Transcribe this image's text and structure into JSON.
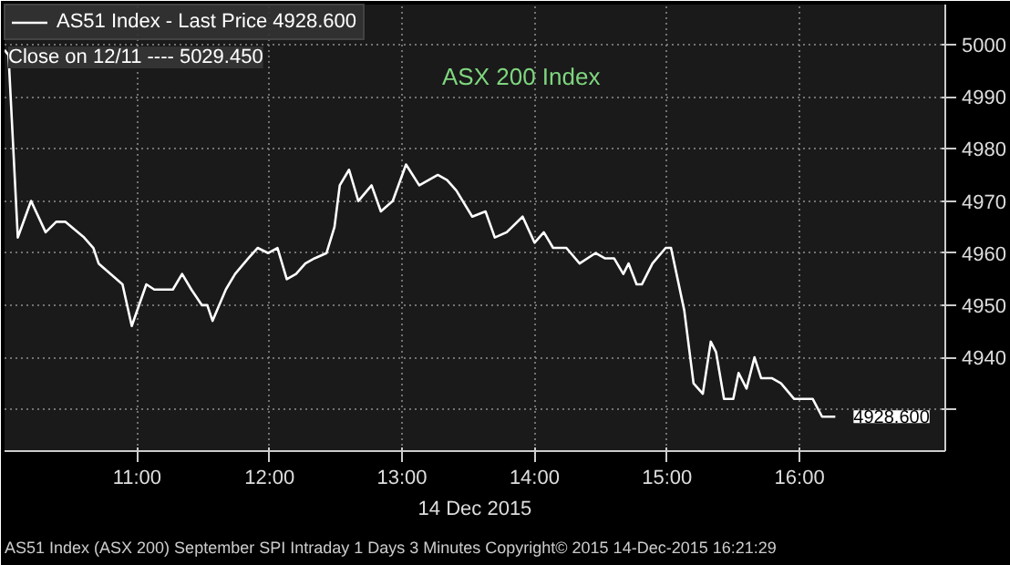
{
  "chart_data": {
    "type": "line",
    "title": "ASX 200 Index",
    "xlabel": "14 Dec 2015",
    "x": [
      10.0,
      10.03,
      10.1,
      10.2,
      10.31,
      10.39,
      10.46,
      10.6,
      10.67,
      10.71,
      10.89,
      10.96,
      11.07,
      11.13,
      11.27,
      11.34,
      11.41,
      11.49,
      11.53,
      11.57,
      11.67,
      11.74,
      11.84,
      11.91,
      11.99,
      12.06,
      12.13,
      12.2,
      12.27,
      12.34,
      12.43,
      12.49,
      12.53,
      12.6,
      12.67,
      12.77,
      12.84,
      12.93,
      13.03,
      13.13,
      13.2,
      13.27,
      13.34,
      13.41,
      13.53,
      13.63,
      13.7,
      13.79,
      13.91,
      14.0,
      14.07,
      14.14,
      14.24,
      14.34,
      14.46,
      14.53,
      14.6,
      14.67,
      14.71,
      14.77,
      14.81,
      14.89,
      14.99,
      15.03,
      15.13,
      15.2,
      15.27,
      15.33,
      15.37,
      15.43,
      15.5,
      15.54,
      15.6,
      15.66,
      15.71,
      15.79,
      15.86,
      15.96,
      16.1,
      16.17,
      16.27
    ],
    "series": [
      {
        "name": "AS51 Index - Last Price 4928.600",
        "color": "#ffffff",
        "values": [
          4999,
          4998,
          4963,
          4970,
          4964,
          4966,
          4966,
          4963,
          4961,
          4958,
          4954,
          4946,
          4954,
          4953,
          4953,
          4956,
          4953,
          4950,
          4950,
          4947,
          4953,
          4956,
          4959,
          4961,
          4960,
          4961,
          4955,
          4956,
          4958,
          4959,
          4960,
          4965,
          4973,
          4976,
          4970,
          4973,
          4968,
          4970,
          4977,
          4973,
          4974,
          4975,
          4974,
          4972,
          4967,
          4968,
          4963,
          4964,
          4967,
          4962,
          4964,
          4961,
          4961,
          4958,
          4960,
          4959,
          4959,
          4956,
          4958,
          4954,
          4954,
          4958,
          4961,
          4961,
          4949,
          4935,
          4933,
          4943,
          4941,
          4932,
          4932,
          4937,
          4934,
          4940,
          4936,
          4936,
          4935,
          4932,
          4932,
          4928.6,
          4928.6
        ]
      }
    ],
    "xlim": [
      10.0,
      17.1
    ],
    "ylim": [
      4922,
      5007.7
    ],
    "xticks": [
      {
        "value": 11,
        "label": "11:00"
      },
      {
        "value": 12,
        "label": "12:00"
      },
      {
        "value": 13,
        "label": "13:00"
      },
      {
        "value": 14,
        "label": "14:00"
      },
      {
        "value": 15,
        "label": "15:00"
      },
      {
        "value": 16,
        "label": "16:00"
      }
    ],
    "yticks": [
      {
        "value": 4930,
        "label": null
      },
      4940,
      4950,
      4960,
      4970,
      4980,
      4990,
      5000
    ],
    "grid": true,
    "legend": "top left",
    "marker": "none",
    "line_style": "solid",
    "annotations": [
      "Close on 12/11 ---- 5029.450",
      {
        "text": "4928.600",
        "x": 16.27,
        "y": 4928.6
      },
      "AS51 Index (ASX 200) September SPI Intraday 1 Days 3 Minutes",
      "Copyright© 2015",
      "14-Dec-2015 16:21:29"
    ]
  }
}
